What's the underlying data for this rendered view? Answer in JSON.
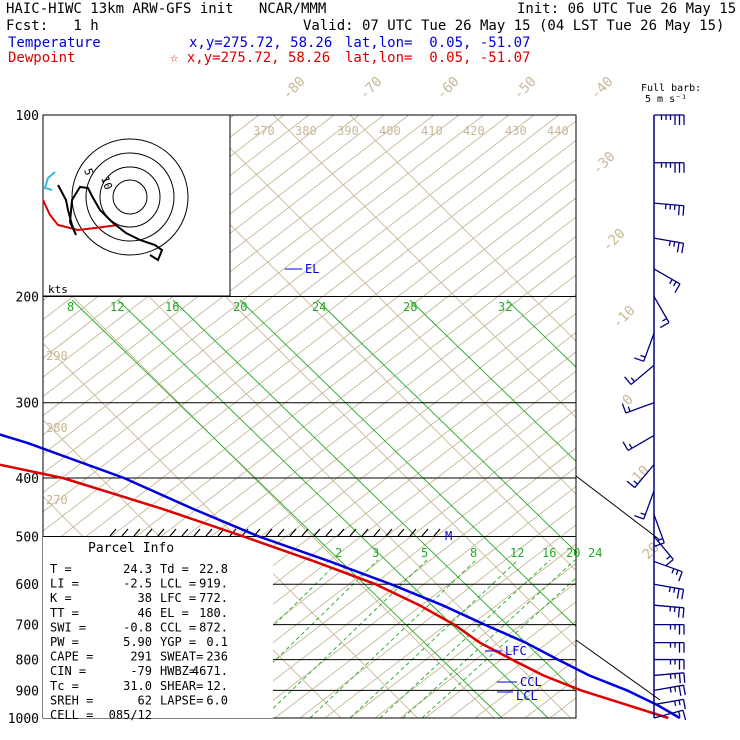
{
  "header": {
    "model": "HAIC-HIWC 13km ARW-GFS init   NCAR/MMM",
    "init": "Init: 06 UTC Tue 26 May 15",
    "fcst": "Fcst:   1 h",
    "valid": "Valid: 07 UTC Tue 26 May 15 (04 LST Tue 26 May 15)",
    "temperature_label": "Temperature",
    "temperature_xy": "x,y=275.72, 58.26",
    "temperature_latlon": "lat,lon=  0.05, -51.07",
    "dewpoint_label": "Dewpoint",
    "dewpoint_xy": "☆ x,y=275.72, 58.26",
    "dewpoint_latlon": "lat,lon=  0.05, -51.07",
    "barb_title": "Full barb:",
    "barb_units": "5 m s⁻¹",
    "hodo_units": "kts"
  },
  "colors": {
    "temperature": "#0000dd",
    "dewpoint": "#dd0000",
    "isotherm": "#c8b896",
    "mixing_ratio": "#22aa22",
    "wind_barb": "#000080",
    "hodo_ring": "#000000"
  },
  "parcel": {
    "title": "Parcel Info",
    "rows": [
      [
        "T  =",
        "24.3",
        "Td =",
        "22.8"
      ],
      [
        "LI =",
        "-2.5",
        "LCL =",
        "919."
      ],
      [
        "K  =",
        "38",
        "LFC =",
        "772."
      ],
      [
        "TT =",
        "46",
        "EL  =",
        "180."
      ],
      [
        "SWI =",
        "-0.8",
        "CCL =",
        "872."
      ],
      [
        "PW =",
        "5.90",
        "YGP =",
        "0.1"
      ],
      [
        "CAPE =",
        "291",
        "SWEAT=",
        "236"
      ],
      [
        "CIN =",
        "-79",
        "HWBZ=",
        "4671."
      ],
      [
        "Tc =",
        "31.0",
        "SHEAR=",
        "12."
      ],
      [
        "SREH =",
        "62",
        "LAPSE=",
        "6.0"
      ],
      [
        "CELL =",
        "085/12",
        "",
        ""
      ]
    ]
  },
  "chart_data": {
    "type": "line",
    "title": "Skew-T log-P diagram",
    "ylabel": "Pressure",
    "pressure_ticks": [
      100,
      200,
      300,
      400,
      500,
      600,
      700,
      800,
      900,
      1000
    ],
    "isotherm_labels": [
      -80,
      -70,
      -60,
      -50,
      -40,
      -30,
      -20,
      -10,
      0,
      10,
      20,
      30,
      40
    ],
    "theta_labels": [
      370,
      380,
      390,
      400,
      410,
      420,
      430,
      440
    ],
    "theta_left_labels": [
      290,
      280,
      270
    ],
    "mixing_ratio_labels_top": [
      8,
      12,
      16,
      20,
      24,
      28,
      32
    ],
    "mixing_ratio_labels_low": [
      "2",
      "3",
      "5",
      "8",
      "12",
      "16",
      "20",
      "24"
    ],
    "annotations": [
      "EL",
      "LFC",
      "CCL",
      "LCL",
      "M"
    ],
    "series": [
      {
        "name": "Temperature",
        "points": [
          [
            100,
            -82
          ],
          [
            110,
            -80
          ],
          [
            130,
            -76
          ],
          [
            150,
            -72
          ],
          [
            170,
            -68
          ],
          [
            190,
            -64
          ],
          [
            200,
            -61
          ],
          [
            250,
            -49
          ],
          [
            300,
            -37
          ],
          [
            350,
            -25
          ],
          [
            400,
            -17
          ],
          [
            450,
            -12
          ],
          [
            500,
            -7
          ],
          [
            550,
            -1
          ],
          [
            600,
            4
          ],
          [
            650,
            8
          ],
          [
            700,
            11
          ],
          [
            750,
            14
          ],
          [
            800,
            16
          ],
          [
            850,
            18
          ],
          [
            900,
            21
          ],
          [
            950,
            23
          ],
          [
            1000,
            24.3
          ]
        ]
      },
      {
        "name": "Dewpoint",
        "points": [
          [
            100,
            -92
          ],
          [
            130,
            -88
          ],
          [
            160,
            -86
          ],
          [
            180,
            -84
          ],
          [
            200,
            -80
          ],
          [
            210,
            -76
          ],
          [
            250,
            -73
          ],
          [
            280,
            -65
          ],
          [
            300,
            -57
          ],
          [
            350,
            -42
          ],
          [
            400,
            -25
          ],
          [
            450,
            -16
          ],
          [
            500,
            -9
          ],
          [
            550,
            -3
          ],
          [
            600,
            2
          ],
          [
            650,
            5
          ],
          [
            700,
            7
          ],
          [
            750,
            8
          ],
          [
            800,
            10
          ],
          [
            850,
            12
          ],
          [
            900,
            15
          ],
          [
            950,
            19
          ],
          [
            1000,
            22.8
          ]
        ]
      }
    ],
    "wind_barbs": [
      {
        "p": 100,
        "dir": 90,
        "spd": 35
      },
      {
        "p": 120,
        "dir": 90,
        "spd": 30
      },
      {
        "p": 140,
        "dir": 95,
        "spd": 25
      },
      {
        "p": 160,
        "dir": 100,
        "spd": 22
      },
      {
        "p": 180,
        "dir": 120,
        "spd": 15
      },
      {
        "p": 200,
        "dir": 150,
        "spd": 12
      },
      {
        "p": 230,
        "dir": 200,
        "spd": 10
      },
      {
        "p": 260,
        "dir": 230,
        "spd": 12
      },
      {
        "p": 300,
        "dir": 250,
        "spd": 10
      },
      {
        "p": 340,
        "dir": 240,
        "spd": 10
      },
      {
        "p": 380,
        "dir": 220,
        "spd": 10
      },
      {
        "p": 420,
        "dir": 200,
        "spd": 12
      },
      {
        "p": 460,
        "dir": 160,
        "spd": 12
      },
      {
        "p": 500,
        "dir": 140,
        "spd": 12
      },
      {
        "p": 550,
        "dir": 110,
        "spd": 15
      },
      {
        "p": 600,
        "dir": 100,
        "spd": 18
      },
      {
        "p": 650,
        "dir": 95,
        "spd": 20
      },
      {
        "p": 700,
        "dir": 90,
        "spd": 22
      },
      {
        "p": 750,
        "dir": 90,
        "spd": 22
      },
      {
        "p": 800,
        "dir": 90,
        "spd": 20
      },
      {
        "p": 850,
        "dir": 85,
        "spd": 20
      },
      {
        "p": 900,
        "dir": 80,
        "spd": 18
      },
      {
        "p": 950,
        "dir": 80,
        "spd": 15
      },
      {
        "p": 1000,
        "dir": 75,
        "spd": 10
      }
    ],
    "hodograph": {
      "rings_kts": [
        5,
        10,
        15
      ],
      "ring_labels": [
        "5",
        "10"
      ]
    }
  }
}
